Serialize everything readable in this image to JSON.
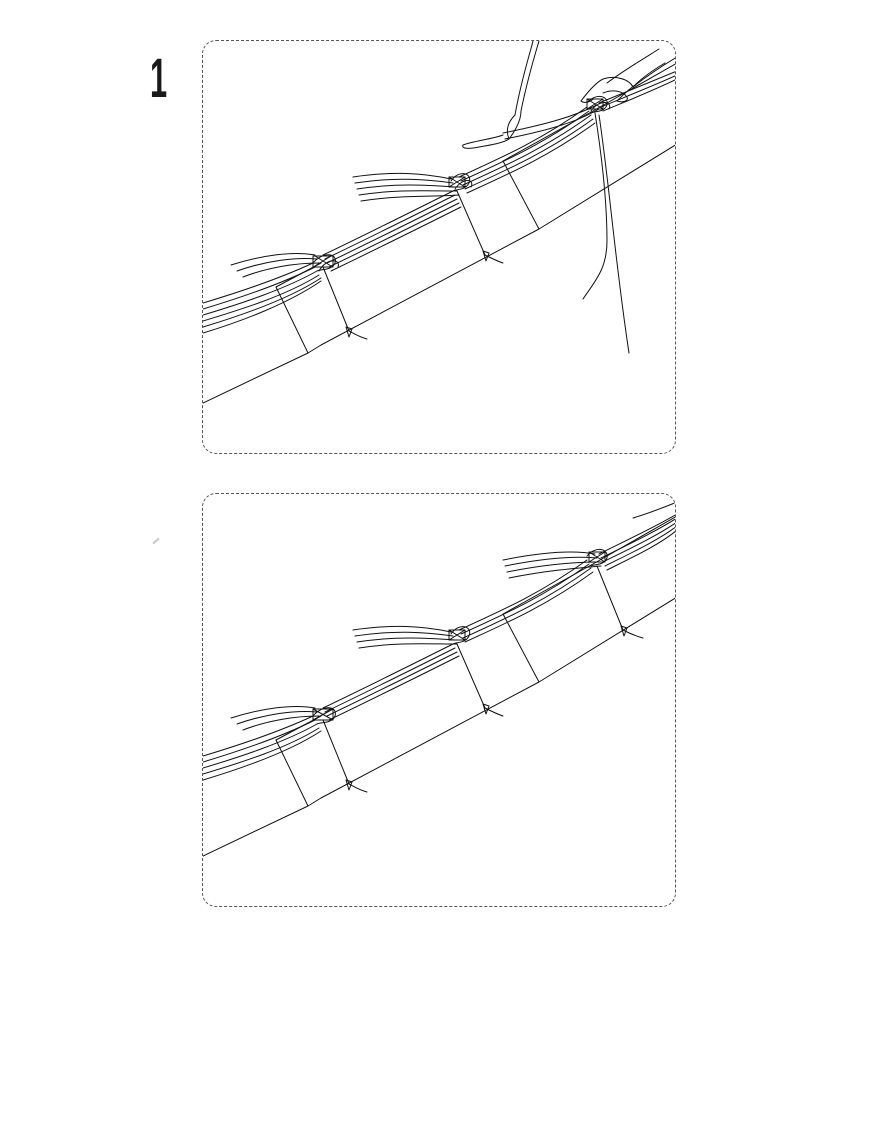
{
  "step": {
    "number": "1"
  },
  "panels": [
    {
      "id": "panel-1",
      "shows_hands": true
    },
    {
      "id": "panel-2",
      "shows_hands": false
    }
  ],
  "colors": {
    "line": "#111111",
    "frame": "#555555",
    "background": "#ffffff"
  }
}
